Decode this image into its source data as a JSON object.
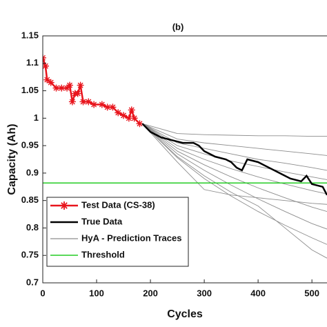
{
  "chart_data": {
    "type": "line",
    "title": "(b)",
    "x_label": "Cycles",
    "y_label": "Capacity (Ah)",
    "xlim": [
      0,
      528
    ],
    "ylim": [
      0.7,
      1.15
    ],
    "xticks": [
      0,
      100,
      200,
      300,
      400,
      500
    ],
    "yticks": [
      0.7,
      0.75,
      0.8,
      0.85,
      0.9,
      0.95,
      1,
      1.05,
      1.1,
      1.15
    ],
    "legend": "lower left",
    "series": [
      {
        "name": "Test Data (CS-38)",
        "color": "#e8141c",
        "marker": "star",
        "x": [
          0,
          5,
          8,
          15,
          25,
          35,
          45,
          50,
          55,
          60,
          65,
          70,
          75,
          85,
          95,
          110,
          120,
          130,
          140,
          150,
          160,
          165,
          170,
          180
        ],
        "values": [
          1.11,
          1.095,
          1.07,
          1.065,
          1.055,
          1.055,
          1.055,
          1.06,
          1.03,
          1.045,
          1.045,
          1.06,
          1.03,
          1.03,
          1.025,
          1.025,
          1.02,
          1.02,
          1.01,
          1.005,
          1.0,
          1.015,
          1.0,
          0.99
        ]
      },
      {
        "name": "True Data",
        "color": "#000000",
        "x": [
          185,
          200,
          220,
          240,
          260,
          280,
          290,
          300,
          310,
          320,
          340,
          350,
          360,
          370,
          380,
          400,
          420,
          440,
          460,
          480,
          490,
          500,
          520,
          528
        ],
        "values": [
          0.99,
          0.975,
          0.965,
          0.96,
          0.955,
          0.955,
          0.95,
          0.94,
          0.935,
          0.93,
          0.925,
          0.92,
          0.91,
          0.905,
          0.925,
          0.92,
          0.91,
          0.9,
          0.89,
          0.885,
          0.895,
          0.88,
          0.875,
          0.86
        ]
      }
    ],
    "prediction_traces": {
      "name": "HyA - Prediction Traces",
      "color": "#8c8c8c",
      "x": [
        185,
        250,
        300,
        350,
        400,
        450,
        500,
        528
      ],
      "lines": [
        [
          0.99,
          0.972,
          0.97,
          0.969,
          0.968,
          0.968,
          0.967,
          0.967
        ],
        [
          0.99,
          0.962,
          0.955,
          0.95,
          0.945,
          0.94,
          0.935,
          0.932
        ],
        [
          0.99,
          0.955,
          0.945,
          0.935,
          0.925,
          0.918,
          0.91,
          0.905
        ],
        [
          0.99,
          0.95,
          0.935,
          0.922,
          0.912,
          0.902,
          0.893,
          0.888
        ],
        [
          0.99,
          0.945,
          0.925,
          0.908,
          0.893,
          0.88,
          0.868,
          0.862
        ],
        [
          0.99,
          0.94,
          0.915,
          0.893,
          0.873,
          0.855,
          0.838,
          0.83
        ],
        [
          0.99,
          0.935,
          0.905,
          0.878,
          0.853,
          0.83,
          0.808,
          0.798
        ],
        [
          0.99,
          0.928,
          0.89,
          0.858,
          0.83,
          0.805,
          0.782,
          0.77
        ],
        [
          0.99,
          0.92,
          0.87,
          0.86,
          0.855,
          0.85,
          0.845,
          0.843
        ],
        [
          0.99,
          0.93,
          0.895,
          0.865,
          0.84,
          0.8,
          0.76,
          0.745
        ]
      ]
    },
    "threshold": {
      "name": "Threshold",
      "color": "#22cc22",
      "value": 0.882
    }
  }
}
